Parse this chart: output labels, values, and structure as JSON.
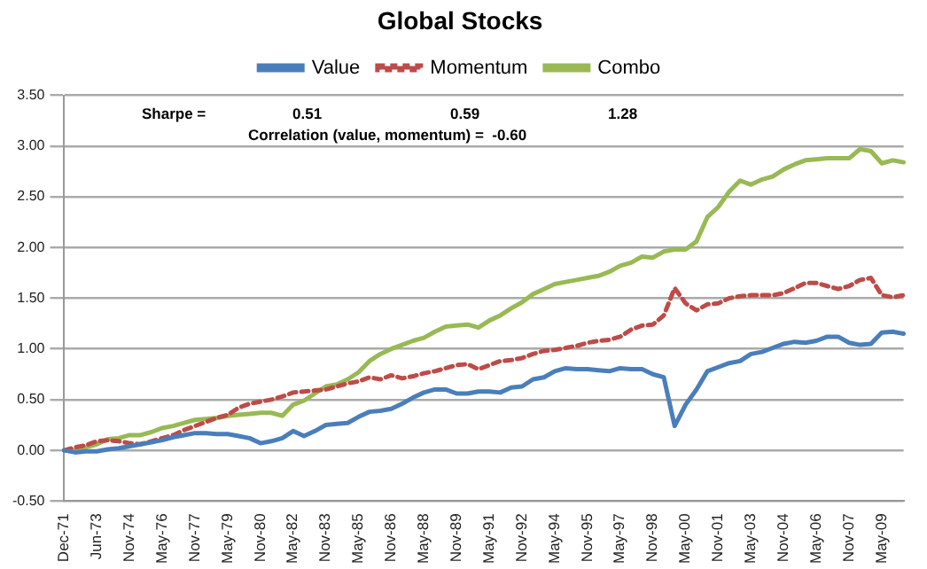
{
  "chart_data": {
    "type": "line",
    "title": "Global Stocks",
    "categories": [
      "Dec-71",
      null,
      null,
      "Jun-73",
      null,
      null,
      "Nov-74",
      null,
      null,
      "May-76",
      null,
      null,
      "Nov-77",
      null,
      null,
      "May-79",
      null,
      null,
      "Nov-80",
      null,
      null,
      "May-82",
      null,
      null,
      "Nov-83",
      null,
      null,
      "May-85",
      null,
      null,
      "Nov-86",
      null,
      null,
      "May-88",
      null,
      null,
      "Nov-89",
      null,
      null,
      "May-91",
      null,
      null,
      "Nov-92",
      null,
      null,
      "May-94",
      null,
      null,
      "Nov-95",
      null,
      null,
      "May-97",
      null,
      null,
      "Nov-98",
      null,
      null,
      "May-00",
      null,
      null,
      "Nov-01",
      null,
      null,
      "May-03",
      null,
      null,
      "Nov-04",
      null,
      null,
      "May-06",
      null,
      null,
      "Nov-07",
      null,
      null,
      "May-09",
      null,
      null
    ],
    "series": [
      {
        "name": "Value",
        "color": "#4a7ebb",
        "values": [
          0,
          -0.02,
          -0.01,
          -0.01,
          0.01,
          0.02,
          0.04,
          0.06,
          0.08,
          0.1,
          0.13,
          0.15,
          0.17,
          0.17,
          0.16,
          0.16,
          0.14,
          0.12,
          0.07,
          0.09,
          0.12,
          0.19,
          0.14,
          0.19,
          0.25,
          0.26,
          0.27,
          0.33,
          0.38,
          0.39,
          0.41,
          0.46,
          0.52,
          0.57,
          0.6,
          0.6,
          0.56,
          0.56,
          0.58,
          0.58,
          0.57,
          0.62,
          0.63,
          0.7,
          0.72,
          0.78,
          0.81,
          0.8,
          0.8,
          0.79,
          0.78,
          0.81,
          0.8,
          0.8,
          0.75,
          0.72,
          0.24,
          0.45,
          0.6,
          0.78,
          0.82,
          0.86,
          0.88,
          0.95,
          0.97,
          1.01,
          1.05,
          1.07,
          1.06,
          1.08,
          1.12,
          1.12,
          1.06,
          1.04,
          1.05,
          1.16,
          1.17,
          1.15
        ]
      },
      {
        "name": "Momentum",
        "color": "#be4b48",
        "line_style": "dashed",
        "values": [
          0,
          0.03,
          0.05,
          0.09,
          0.1,
          0.09,
          0.07,
          0.06,
          0.09,
          0.12,
          0.15,
          0.2,
          0.24,
          0.28,
          0.32,
          0.35,
          0.42,
          0.46,
          0.48,
          0.5,
          0.53,
          0.57,
          0.58,
          0.59,
          0.6,
          0.63,
          0.66,
          0.68,
          0.72,
          0.7,
          0.74,
          0.71,
          0.73,
          0.76,
          0.78,
          0.81,
          0.84,
          0.85,
          0.8,
          0.84,
          0.88,
          0.89,
          0.91,
          0.95,
          0.98,
          0.99,
          1.01,
          1.03,
          1.06,
          1.08,
          1.09,
          1.12,
          1.19,
          1.23,
          1.24,
          1.33,
          1.6,
          1.45,
          1.38,
          1.44,
          1.45,
          1.5,
          1.52,
          1.53,
          1.53,
          1.53,
          1.55,
          1.6,
          1.65,
          1.65,
          1.62,
          1.59,
          1.62,
          1.68,
          1.7,
          1.53,
          1.51,
          1.53
        ]
      },
      {
        "name": "Combo",
        "color": "#98b954",
        "values": [
          0,
          0,
          0.03,
          0.06,
          0.11,
          0.12,
          0.15,
          0.15,
          0.18,
          0.22,
          0.24,
          0.27,
          0.3,
          0.31,
          0.32,
          0.34,
          0.35,
          0.36,
          0.37,
          0.37,
          0.34,
          0.45,
          0.49,
          0.56,
          0.63,
          0.65,
          0.7,
          0.77,
          0.88,
          0.95,
          1,
          1.04,
          1.08,
          1.11,
          1.17,
          1.22,
          1.23,
          1.24,
          1.21,
          1.28,
          1.33,
          1.4,
          1.46,
          1.54,
          1.59,
          1.64,
          1.66,
          1.68,
          1.7,
          1.72,
          1.76,
          1.82,
          1.85,
          1.91,
          1.9,
          1.96,
          1.98,
          1.98,
          2.06,
          2.3,
          2.4,
          2.55,
          2.66,
          2.62,
          2.67,
          2.7,
          2.77,
          2.82,
          2.86,
          2.87,
          2.88,
          2.88,
          2.88,
          2.97,
          2.95,
          2.83,
          2.86,
          2.84
        ]
      }
    ],
    "ylim": [
      -0.5,
      3.5
    ],
    "yticks": [
      {
        "value": -0.5,
        "label": "-0.50"
      },
      {
        "value": 0,
        "label": "0.00"
      },
      {
        "value": 0.5,
        "label": "0.50"
      },
      {
        "value": 1,
        "label": "1.00"
      },
      {
        "value": 1.5,
        "label": "1.50"
      },
      {
        "value": 2,
        "label": "2.00"
      },
      {
        "value": 2.5,
        "label": "2.50"
      },
      {
        "value": 3,
        "label": "3.00"
      },
      {
        "value": 3.5,
        "label": "3.50"
      }
    ],
    "grid": "y",
    "legend": "top",
    "marker": "none",
    "annotations": [
      "Sharpe =",
      "0.51",
      "0.59",
      "1.28",
      "Correlation (value, momentum) =  -0.60"
    ]
  }
}
